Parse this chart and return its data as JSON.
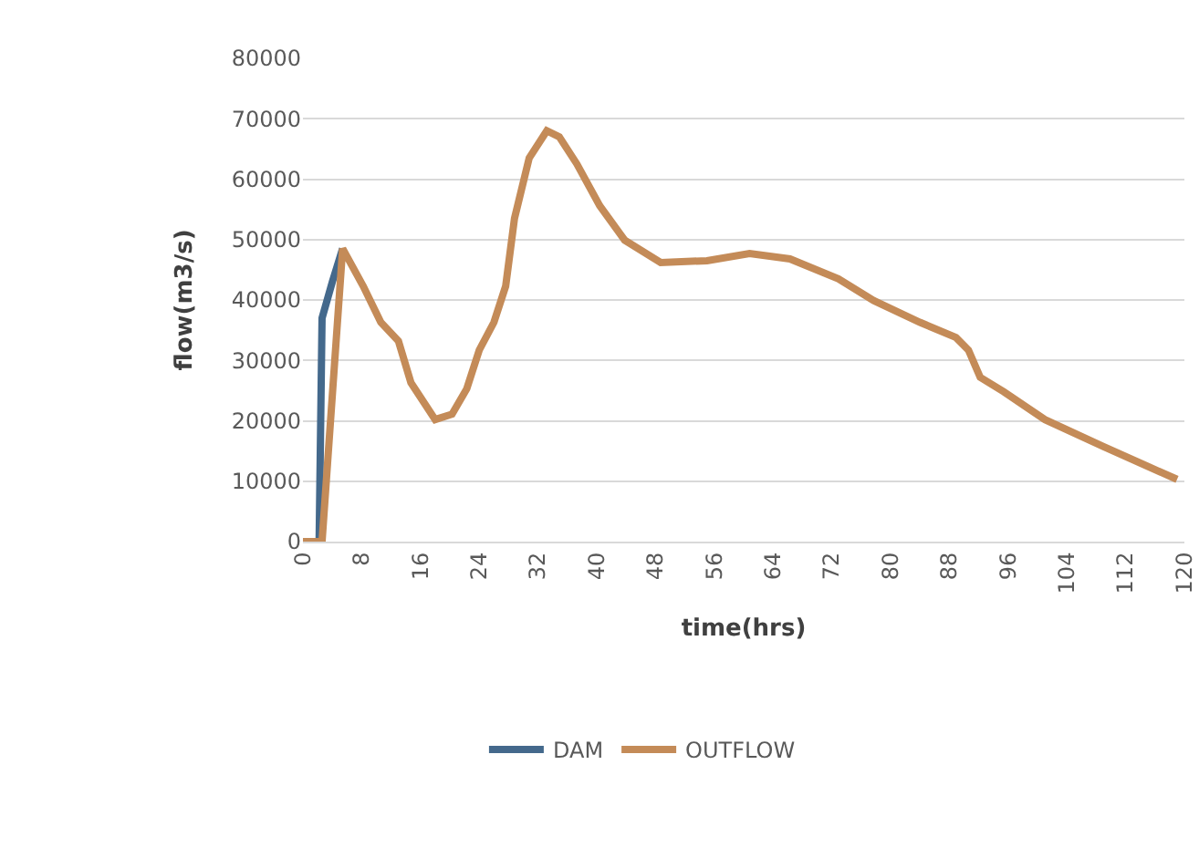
{
  "chart_data": {
    "type": "line",
    "xlabel": "time(hrs)",
    "ylabel": "flow(m3/s)",
    "xlim": [
      0,
      120
    ],
    "xticks": [
      0,
      8,
      16,
      24,
      32,
      40,
      48,
      56,
      64,
      72,
      80,
      88,
      96,
      104,
      112,
      120
    ],
    "ylim": [
      0,
      80000
    ],
    "yticks": [
      0,
      10000,
      20000,
      30000,
      40000,
      50000,
      60000,
      70000,
      80000
    ],
    "grid": "y",
    "legend": "bottom",
    "line_style": "solid",
    "marker": "none",
    "series": [
      {
        "name": "DAM",
        "color": "#44698c",
        "x": [
          0,
          2.2,
          2.6,
          4,
          5.4
        ],
        "values": [
          0,
          0,
          37000,
          43000,
          48500
        ]
      },
      {
        "name": "OUTFLOW",
        "color": "#c48b58",
        "x": [
          0,
          2.6,
          5.4,
          8.2,
          10.6,
          13,
          14.7,
          18,
          20.3,
          22.3,
          24,
          26,
          27.6,
          28.8,
          30.8,
          33.2,
          34.9,
          37.3,
          40.4,
          43.8,
          48.7,
          55,
          60.8,
          66.3,
          72.9,
          77.7,
          84,
          88.9,
          90.6,
          92.2,
          95.4,
          101,
          109,
          119
        ],
        "values": [
          0,
          0,
          48500,
          42300,
          36300,
          33200,
          26300,
          20200,
          21100,
          25300,
          31700,
          36300,
          42300,
          53500,
          63500,
          68000,
          67000,
          62500,
          55600,
          49900,
          46200,
          46500,
          47700,
          46800,
          43500,
          39900,
          36300,
          33800,
          31700,
          27200,
          24800,
          20200,
          15700,
          10300
        ]
      }
    ]
  }
}
